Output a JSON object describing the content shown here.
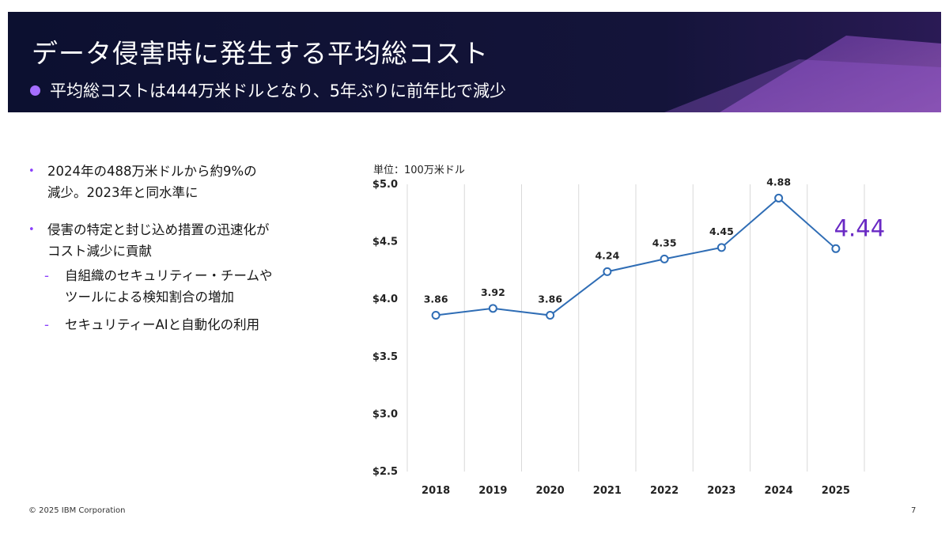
{
  "header": {
    "title": "データ侵害時に発生する平均総コスト",
    "subtitle": "平均総コストは444万米ドルとなり、5年ぶりに前年比で減少",
    "colors": {
      "background": "#0f1230",
      "accent": "#a56eff"
    }
  },
  "bullets": [
    {
      "text_line1": "2024年の488万米ドルから約9%の",
      "text_line2": "減少。2023年と同水準に"
    },
    {
      "text_line1": "侵害の特定と封じ込め措置の迅速化が",
      "text_line2": "コスト減少に貢献"
    }
  ],
  "sub_bullets": [
    {
      "text_line1": "自組織のセキュリティー・チームや",
      "text_line2": "ツールによる検知割合の増加"
    },
    {
      "text_line1": "セキュリティーAIと自動化の利用",
      "text_line2": ""
    }
  ],
  "chart_data": {
    "type": "line",
    "unit_label": "単位：100万米ドル",
    "categories": [
      "2018",
      "2019",
      "2020",
      "2021",
      "2022",
      "2023",
      "2024",
      "2025"
    ],
    "values": [
      3.86,
      3.92,
      3.86,
      4.24,
      4.35,
      4.45,
      4.88,
      4.44
    ],
    "data_labels": [
      "3.86",
      "3.92",
      "3.86",
      "4.24",
      "4.35",
      "4.45",
      "4.88",
      "4.44"
    ],
    "yticks": [
      2.5,
      3.0,
      3.5,
      4.0,
      4.5,
      5.0
    ],
    "ytick_labels": [
      "$2.5",
      "$3.0",
      "$3.5",
      "$4.0",
      "$4.5",
      "$5.0"
    ],
    "ylim": [
      2.5,
      5.0
    ],
    "grid": "vertical",
    "colors": {
      "line": "#2f6db5",
      "highlight_label": "#6929c4"
    }
  },
  "footer": {
    "copyright": "© 2025 IBM Corporation",
    "page": "7"
  }
}
